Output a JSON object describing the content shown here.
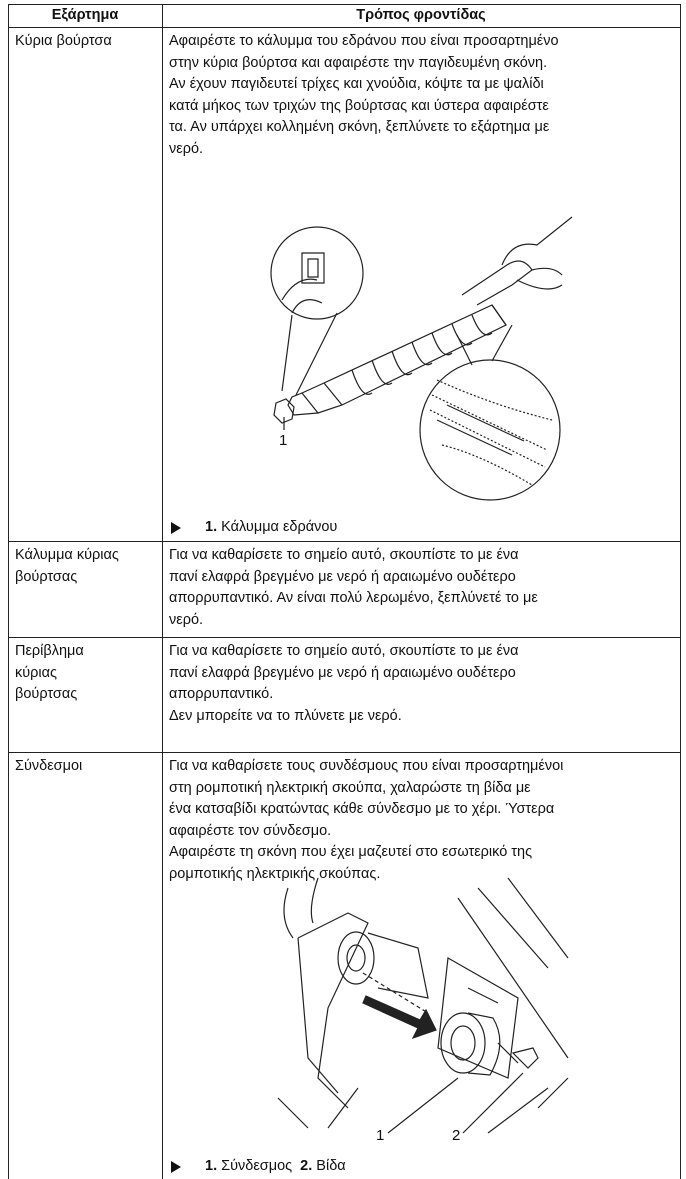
{
  "table": {
    "headers": [
      "Εξάρτημα",
      "Τρόπος φροντίδας"
    ],
    "rows": [
      {
        "part": [
          "Κύρια βούρτσα"
        ],
        "description": [
          "Αφαιρέστε το κάλυμμα του εδράνου που είναι προσαρτημένο",
          "στην κύρια βούρτσα και αφαιρέστε την παγιδευμένη σκόνη.",
          "Αν έχουν παγιδευτεί τρίχες και χνούδια, κόψτε τα με ψαλίδι",
          "κατά μήκος των τριχών της βούρτσας και ύστερα αφαιρέστε",
          "τα. Αν υπάρχει κολλημένη σκόνη, ξεπλύνετε το εξάρτημα με",
          "νερό."
        ],
        "figure": {
          "callouts": [
            "1"
          ],
          "caption": [
            {
              "number": "1.",
              "label": "Κάλυμμα εδράνου"
            }
          ]
        }
      },
      {
        "part": [
          "Κάλυμμα κύριας",
          "βούρτσας"
        ],
        "description": [
          "Για να καθαρίσετε το σημείο αυτό, σκουπίστε το με ένα",
          "πανί ελαφρά βρεγμένο με νερό ή αραιωμένο ουδέτερο",
          "απορρυπαντικό. Αν είναι πολύ λερωμένο, ξεπλύνετέ το με",
          "νερό."
        ]
      },
      {
        "part": [
          "Περίβλημα",
          "κύριας",
          "βούρτσας"
        ],
        "description": [
          "Για να καθαρίσετε το σημείο αυτό, σκουπίστε το με ένα",
          "πανί ελαφρά βρεγμένο με νερό ή αραιωμένο ουδέτερο",
          "απορρυπαντικό.",
          "Δεν μπορείτε να το πλύνετε με νερό."
        ]
      },
      {
        "part": [
          "Σύνδεσμοι"
        ],
        "description": [
          "Για να καθαρίσετε τους συνδέσμους που είναι προσαρτημένοι",
          "στη ρομποτική ηλεκτρική σκούπα, χαλαρώστε τη βίδα με",
          "ένα κατσαβίδι κρατώντας κάθε σύνδεσμο με το χέρι. Ύστερα",
          "αφαιρέστε τον σύνδεσμο.",
          "Αφαιρέστε τη σκόνη που έχει μαζευτεί στο εσωτερικό της",
          "ρομποτικής ηλεκτρικής σκούπας."
        ],
        "figure": {
          "callouts": [
            "1",
            "2"
          ],
          "caption": [
            {
              "number": "1.",
              "label": "Σύνδεσμος"
            },
            {
              "number": "2.",
              "label": "Βίδα"
            }
          ]
        }
      }
    ]
  }
}
